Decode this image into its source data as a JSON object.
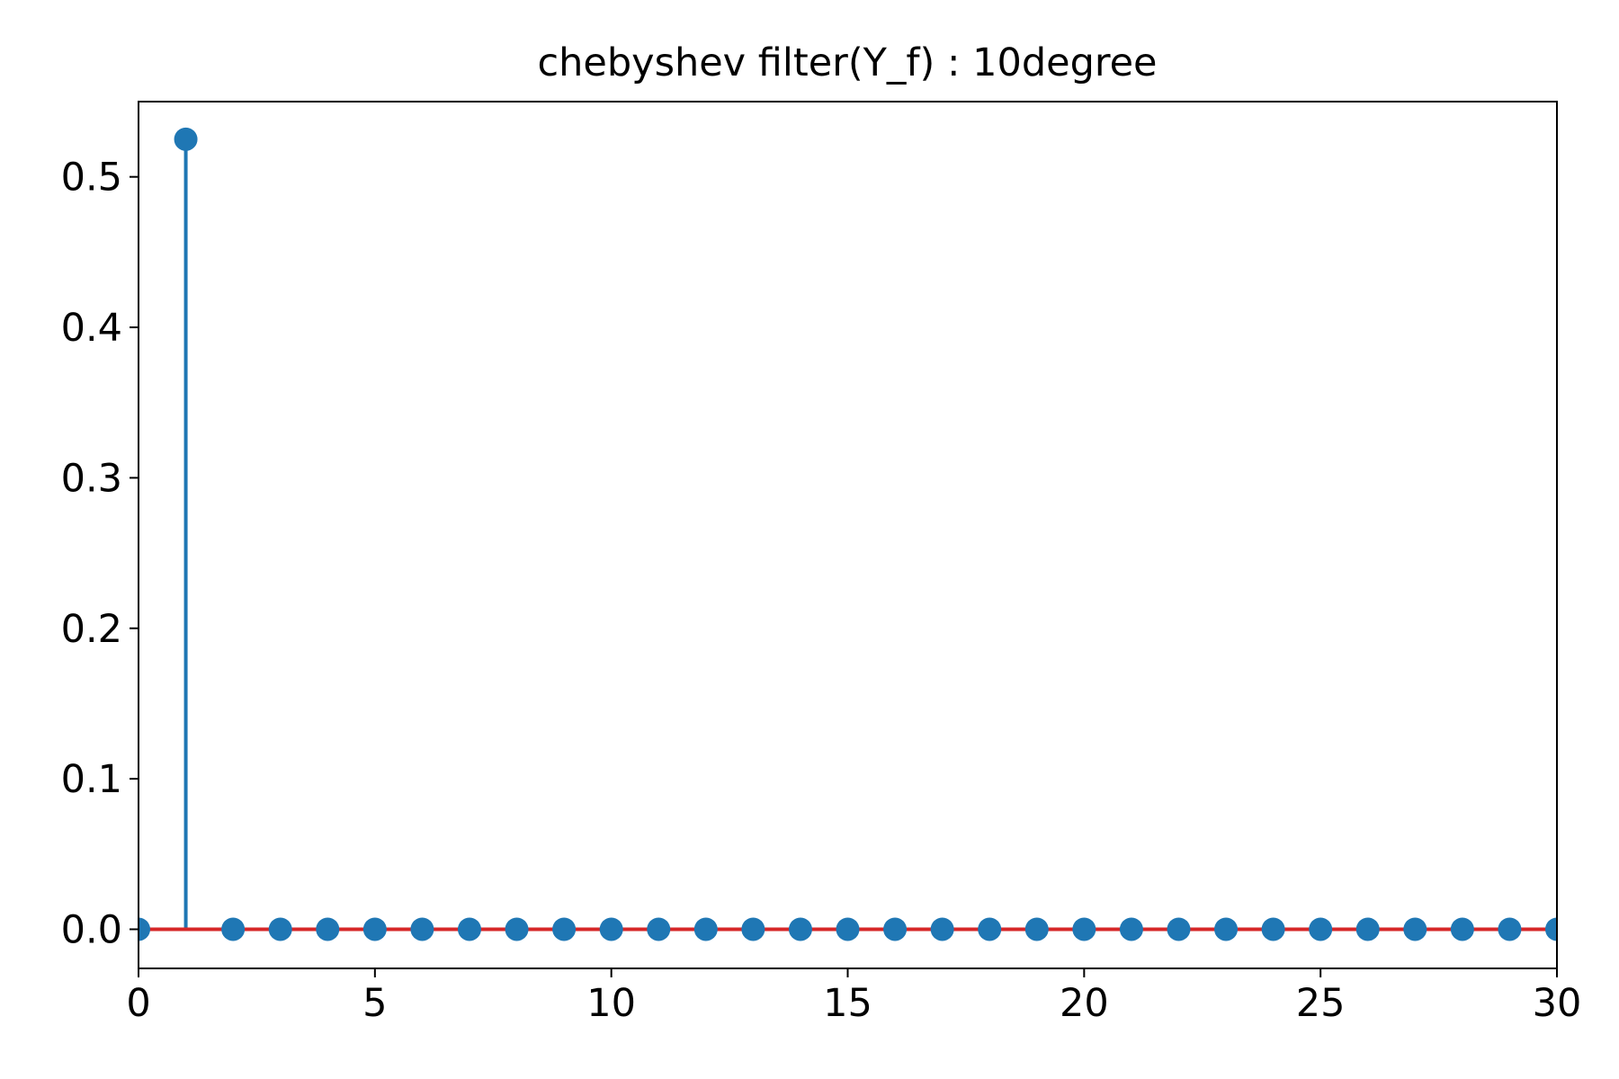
{
  "chart_data": {
    "type": "stem",
    "title": "chebyshev filter(Y_f) : 10degree",
    "xlabel": "",
    "ylabel": "",
    "xlim": [
      0,
      30
    ],
    "ylim": [
      -0.026,
      0.55
    ],
    "x_ticks": [
      0,
      5,
      10,
      15,
      20,
      25,
      30
    ],
    "x_tick_labels": [
      "0",
      "5",
      "10",
      "15",
      "20",
      "25",
      "30"
    ],
    "y_ticks": [
      0.0,
      0.1,
      0.2,
      0.3,
      0.4,
      0.5
    ],
    "y_tick_labels": [
      "0.0",
      "0.1",
      "0.2",
      "0.3",
      "0.4",
      "0.5"
    ],
    "grid": false,
    "x": [
      0,
      1,
      2,
      3,
      4,
      5,
      6,
      7,
      8,
      9,
      10,
      11,
      12,
      13,
      14,
      15,
      16,
      17,
      18,
      19,
      20,
      21,
      22,
      23,
      24,
      25,
      26,
      27,
      28,
      29,
      30
    ],
    "values": [
      0,
      0.525,
      0,
      0,
      0,
      0,
      0,
      0,
      0,
      0,
      0,
      0,
      0,
      0,
      0,
      0,
      0,
      0,
      0,
      0,
      0,
      0,
      0,
      0,
      0,
      0,
      0,
      0,
      0,
      0,
      0
    ],
    "baseline": 0,
    "colors": {
      "marker": "#1f77b4",
      "stem": "#1f77b4",
      "baseline": "#d62728",
      "axes": "#000000"
    }
  }
}
